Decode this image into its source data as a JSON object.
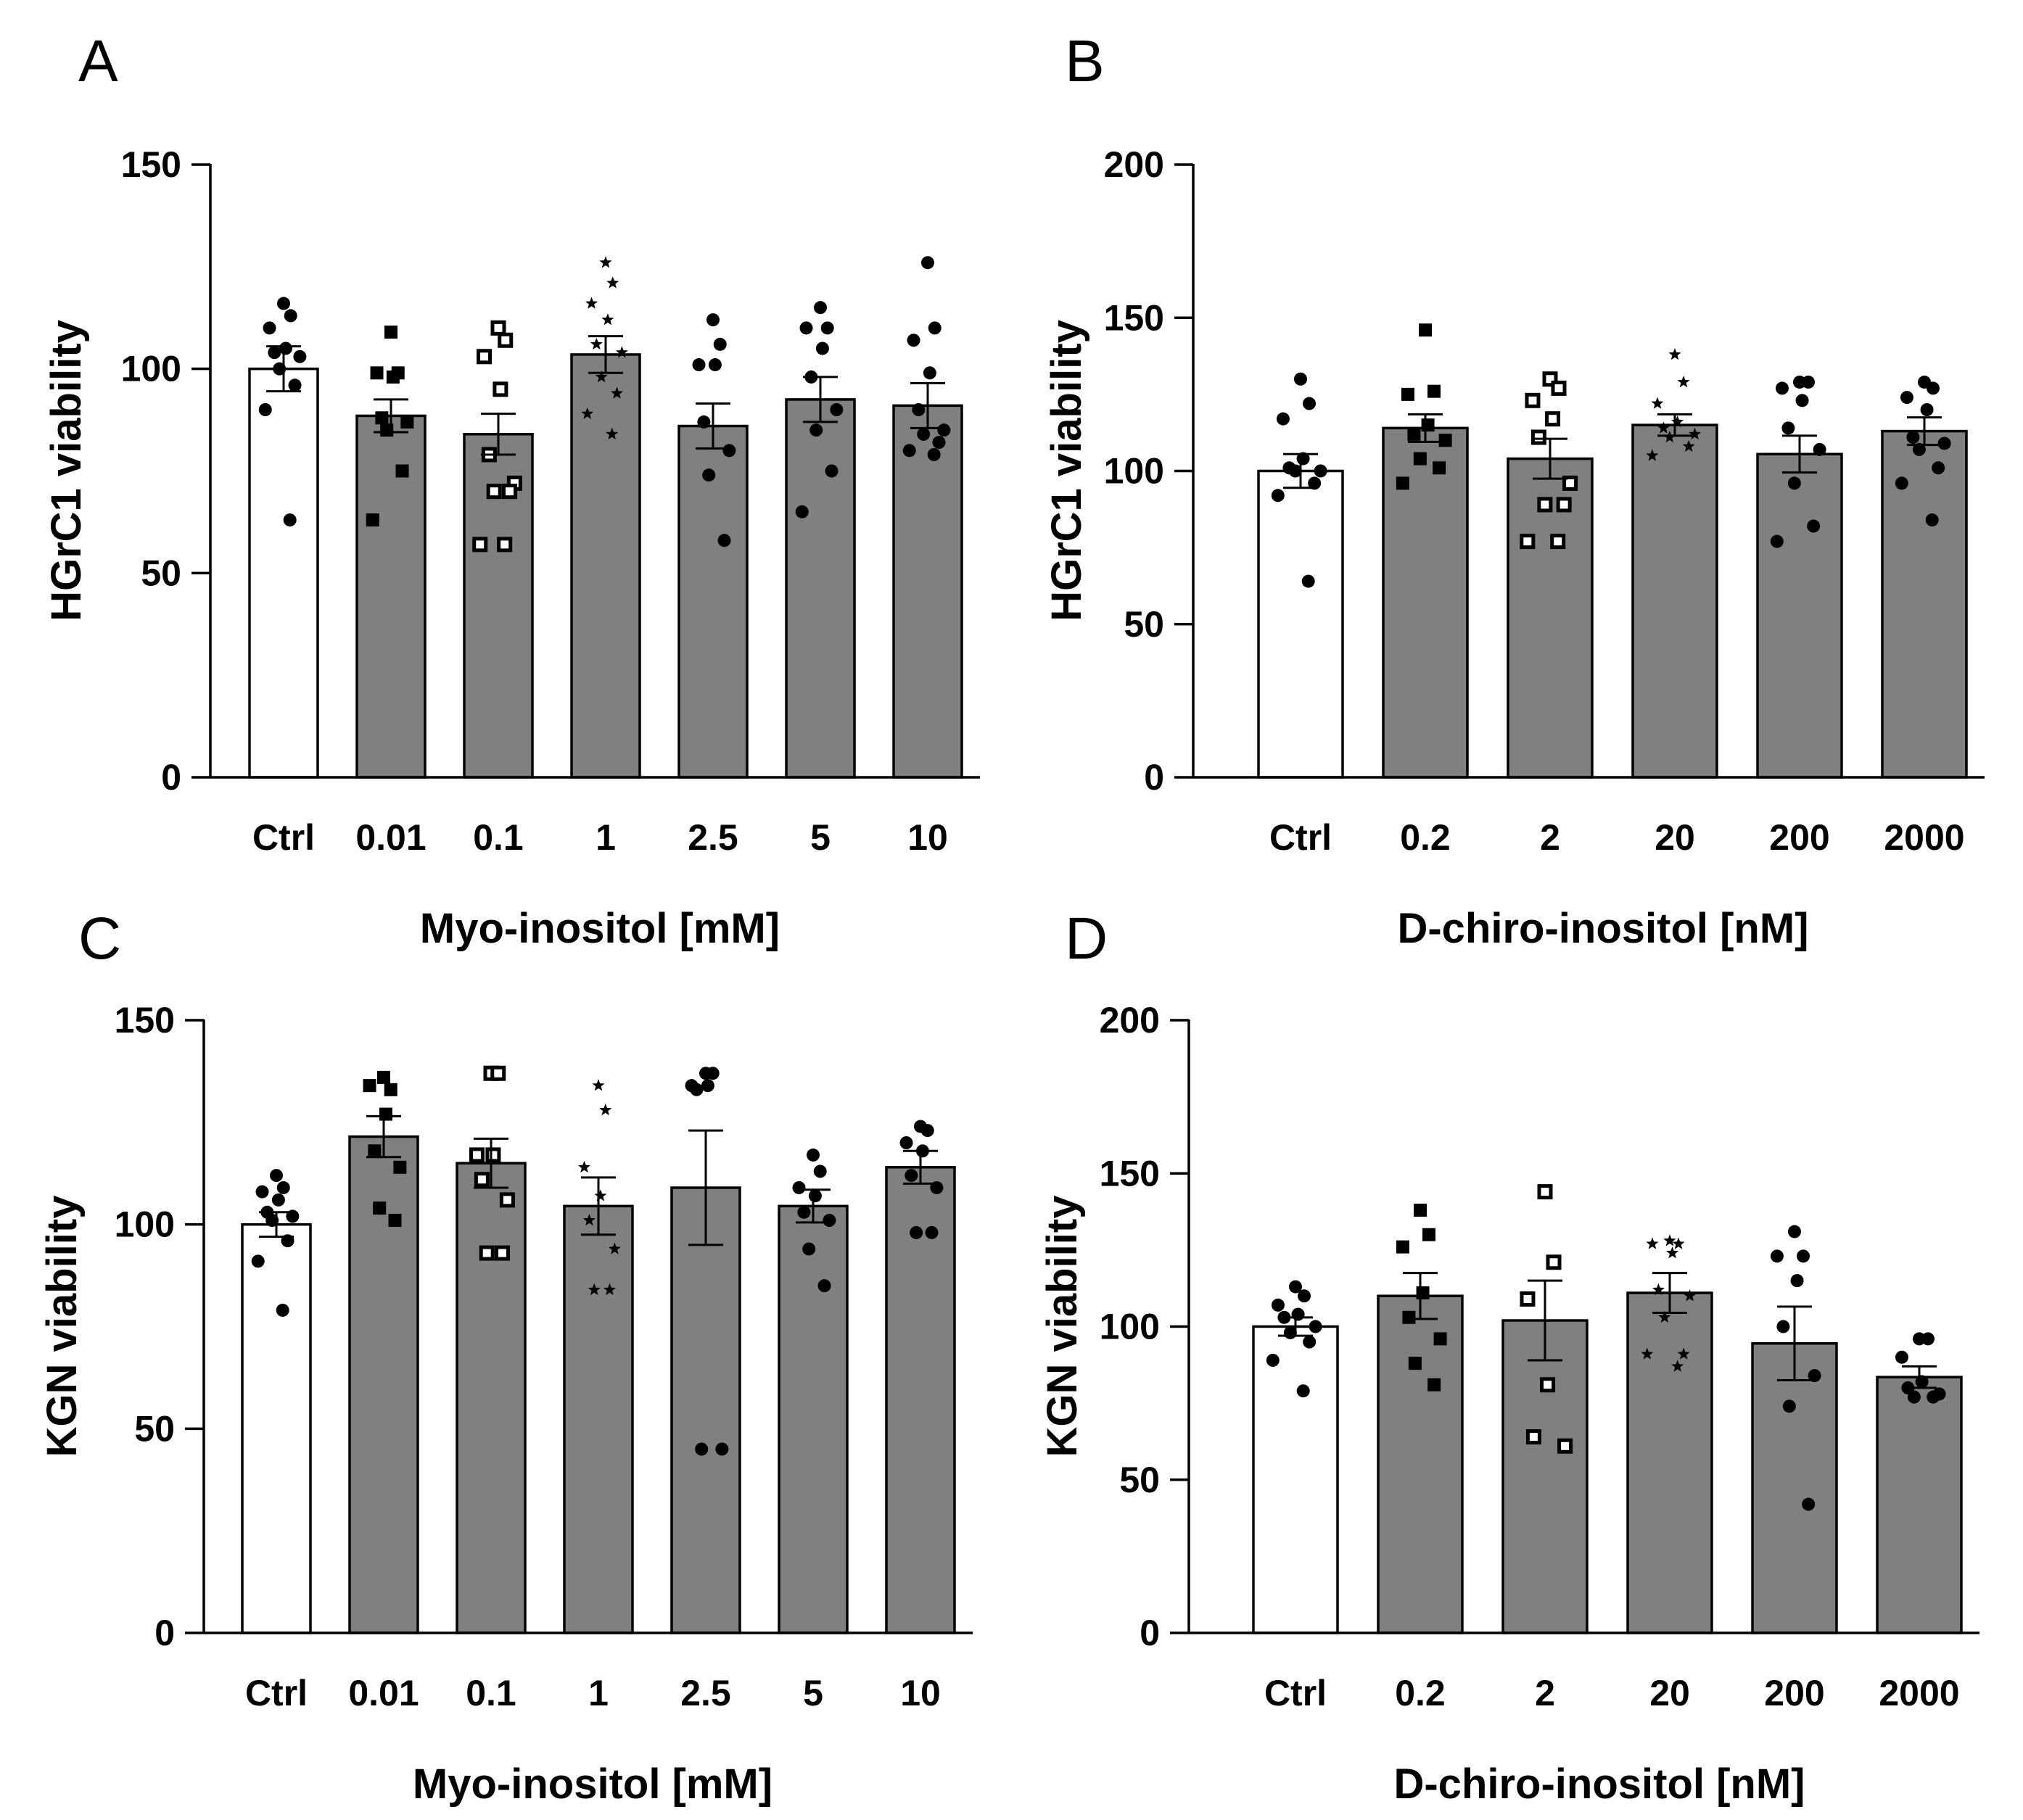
{
  "chart_data": [
    {
      "panel": "A",
      "type": "bar",
      "xlabel": "Myo-inositol [mM]",
      "ylabel": "HGrC1 viability",
      "ylim": [
        0,
        150
      ],
      "yticks": [
        0,
        50,
        100,
        150
      ],
      "categories": [
        "Ctrl",
        "0.01",
        "0.1",
        "1",
        "2.5",
        "5",
        "10"
      ],
      "values": [
        100,
        88.5,
        84,
        103.5,
        86,
        92.5,
        91
      ],
      "sem": [
        5.5,
        4,
        5,
        4.5,
        5.5,
        5.5,
        5.5
      ],
      "bar_colors": [
        "#ffffff",
        "#808080",
        "#808080",
        "#808080",
        "#808080",
        "#808080",
        "#808080"
      ],
      "markers": [
        "circle",
        "square",
        "open-square",
        "star",
        "circle",
        "circle",
        "circle"
      ],
      "points": [
        [
          116,
          113,
          110,
          105,
          104,
          103,
          100,
          96,
          90,
          63
        ],
        [
          109,
          99,
          99,
          98,
          88,
          87,
          85,
          75,
          63
        ],
        [
          110,
          107,
          103,
          95,
          79,
          72,
          70,
          70,
          57,
          57
        ],
        [
          126,
          121,
          116,
          112,
          106,
          104,
          98,
          94,
          89,
          84
        ],
        [
          112,
          106,
          101,
          101,
          87,
          80,
          74,
          58
        ],
        [
          115,
          110,
          110,
          105,
          98,
          90,
          85,
          75,
          65
        ],
        [
          126,
          110,
          107,
          99,
          90,
          85,
          84,
          82,
          80,
          79
        ]
      ]
    },
    {
      "panel": "B",
      "type": "bar",
      "xlabel": "D-chiro-inositol [nM]",
      "ylabel": "HGrC1 viability",
      "ylim": [
        0,
        200
      ],
      "yticks": [
        0,
        50,
        100,
        150,
        200
      ],
      "categories": [
        "Ctrl",
        "0.2",
        "2",
        "20",
        "200",
        "2000"
      ],
      "values": [
        100,
        114,
        104,
        115,
        105.5,
        113
      ],
      "sem": [
        5.5,
        4.5,
        6.5,
        3.5,
        6,
        4.5
      ],
      "bar_colors": [
        "#ffffff",
        "#808080",
        "#808080",
        "#808080",
        "#808080",
        "#808080"
      ],
      "markers": [
        "circle",
        "square",
        "open-square",
        "star",
        "circle",
        "circle"
      ],
      "points": [
        [
          130,
          122,
          117,
          104,
          101,
          100,
          100,
          96,
          92,
          64
        ],
        [
          146,
          126,
          125,
          115,
          112,
          110,
          104,
          101,
          96
        ],
        [
          130,
          127,
          123,
          117,
          111,
          96,
          89,
          89,
          77,
          77
        ],
        [
          138,
          129,
          122,
          116,
          114,
          112,
          111,
          108,
          105
        ],
        [
          129,
          129,
          127,
          123,
          114,
          107,
          96,
          82,
          77
        ],
        [
          129,
          127,
          124,
          120,
          111,
          109,
          107,
          101,
          96,
          84
        ]
      ]
    },
    {
      "panel": "C",
      "type": "bar",
      "xlabel": "Myo-inositol [mM]",
      "ylabel": "KGN viability",
      "ylim": [
        0,
        150
      ],
      "yticks": [
        0,
        50,
        100,
        150
      ],
      "categories": [
        "Ctrl",
        "0.01",
        "0.1",
        "1",
        "2.5",
        "5",
        "10"
      ],
      "values": [
        100,
        121.5,
        115,
        104.5,
        109,
        104.5,
        114
      ],
      "sem": [
        3,
        5,
        6,
        7,
        14,
        4,
        4
      ],
      "bar_colors": [
        "#ffffff",
        "#808080",
        "#808080",
        "#808080",
        "#808080",
        "#808080",
        "#808080"
      ],
      "markers": [
        "circle",
        "square",
        "open-square",
        "star",
        "circle",
        "circle",
        "circle"
      ],
      "points": [
        [
          112,
          109,
          108,
          106,
          103,
          102,
          101,
          96,
          91,
          79
        ],
        [
          136,
          133,
          134,
          127,
          118,
          114,
          104,
          101
        ],
        [
          137,
          137,
          117,
          117,
          111,
          106,
          93,
          93
        ],
        [
          134,
          128,
          114,
          107,
          101,
          94,
          84,
          84
        ],
        [
          137,
          137,
          134,
          134,
          133,
          45,
          45
        ],
        [
          117,
          113,
          109,
          107,
          103,
          101,
          94,
          85
        ],
        [
          124,
          123,
          120,
          118,
          112,
          109,
          98,
          98
        ]
      ]
    },
    {
      "panel": "D",
      "type": "bar",
      "xlabel": "D-chiro-inositol [nM]",
      "ylabel": "KGN viability",
      "ylim": [
        0,
        200
      ],
      "yticks": [
        0,
        50,
        100,
        150,
        200
      ],
      "categories": [
        "Ctrl",
        "0.2",
        "2",
        "20",
        "200",
        "2000"
      ],
      "values": [
        100,
        110,
        102,
        111,
        94.5,
        83.5
      ],
      "sem": [
        3,
        7.5,
        13,
        6.5,
        12,
        3.5
      ],
      "bar_colors": [
        "#ffffff",
        "#808080",
        "#808080",
        "#808080",
        "#808080",
        "#808080"
      ],
      "markers": [
        "circle",
        "square",
        "open-square",
        "star",
        "circle",
        "circle"
      ],
      "points": [
        [
          113,
          110,
          107,
          104,
          103,
          100,
          98,
          95,
          89,
          79
        ],
        [
          138,
          130,
          126,
          111,
          103,
          96,
          88,
          81
        ],
        [
          144,
          121,
          109,
          81,
          64,
          61
        ],
        [
          128,
          127,
          127,
          124,
          112,
          110,
          103,
          91,
          91,
          87
        ],
        [
          131,
          123,
          123,
          115,
          100,
          84,
          74,
          42
        ],
        [
          96,
          96,
          90,
          82,
          80,
          78,
          77,
          77
        ]
      ]
    }
  ],
  "panel_letters": [
    "A",
    "B",
    "C",
    "D"
  ]
}
